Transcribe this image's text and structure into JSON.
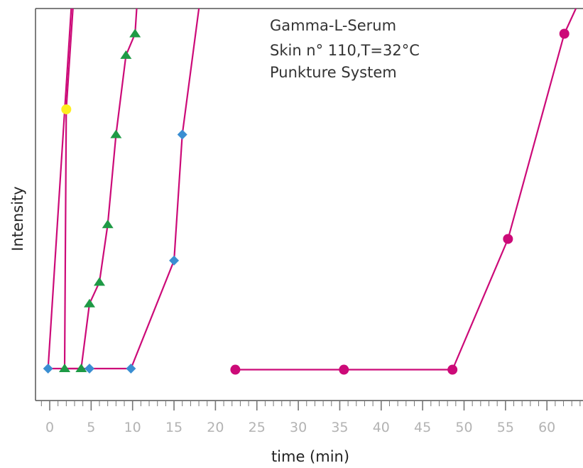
{
  "chart_data": {
    "type": "line",
    "title": "",
    "annotations": [
      "Gamma-L-Serum",
      "Skin n° 110,T=32°C",
      "Punkture System"
    ],
    "xlabel": "time (min)",
    "ylabel": "Intensity",
    "xlim": [
      -1.5,
      64
    ],
    "ylim": [
      -5,
      100
    ],
    "x_ticks": [
      0,
      5,
      10,
      15,
      20,
      25,
      30,
      35,
      40,
      45,
      50,
      55,
      60
    ],
    "y_ticks": [],
    "grid": false,
    "legend": "none",
    "series": [
      {
        "line_color": "#cc0a78",
        "marker": "diamond",
        "marker_color": "#3a8ed2",
        "points": [
          [
            -0.2,
            0
          ],
          [
            2.6,
            100
          ]
        ],
        "marker_indices": [
          0
        ]
      },
      {
        "line_color": "#cc0a78",
        "marker": "circle",
        "marker_color": "#ffee1f",
        "points": [
          [
            1.8,
            0
          ],
          [
            2.0,
            72
          ],
          [
            2.8,
            100
          ]
        ],
        "marker_indices": [
          1
        ]
      },
      {
        "line_color": "#cc0a78",
        "marker": "triangle",
        "marker_color": "#1e9a45",
        "points": [
          [
            1.8,
            0
          ],
          [
            3.8,
            0
          ],
          [
            4.8,
            18
          ],
          [
            6.0,
            24
          ],
          [
            7.0,
            40
          ],
          [
            8.0,
            65
          ],
          [
            9.2,
            87
          ],
          [
            10.3,
            93
          ],
          [
            10.5,
            100
          ]
        ],
        "marker_indices": [
          0,
          1,
          2,
          3,
          4,
          5,
          6,
          7
        ]
      },
      {
        "line_color": "#cc0a78",
        "marker": "diamond",
        "marker_color": "#3a8ed2",
        "points": [
          [
            -0.2,
            0
          ],
          [
            4.8,
            0
          ]
        ],
        "marker_indices": [
          1
        ]
      },
      {
        "line_color": "#cc0a78",
        "marker": "diamond",
        "marker_color": "#3a8ed2",
        "points": [
          [
            4.8,
            0
          ],
          [
            9.8,
            0
          ],
          [
            15.0,
            30
          ],
          [
            16.0,
            65
          ],
          [
            18.0,
            100
          ]
        ],
        "marker_indices": [
          1,
          2,
          3
        ]
      },
      {
        "line_color": "#cc0a78",
        "marker": "circle",
        "marker_color": "#cc0a78",
        "points": [
          [
            22.4,
            -0.3
          ],
          [
            35.5,
            -0.3
          ],
          [
            48.6,
            -0.3
          ],
          [
            55.3,
            36
          ],
          [
            62.1,
            93
          ],
          [
            63.5,
            100
          ]
        ],
        "marker_indices": [
          0,
          1,
          2,
          3,
          4
        ]
      }
    ]
  }
}
